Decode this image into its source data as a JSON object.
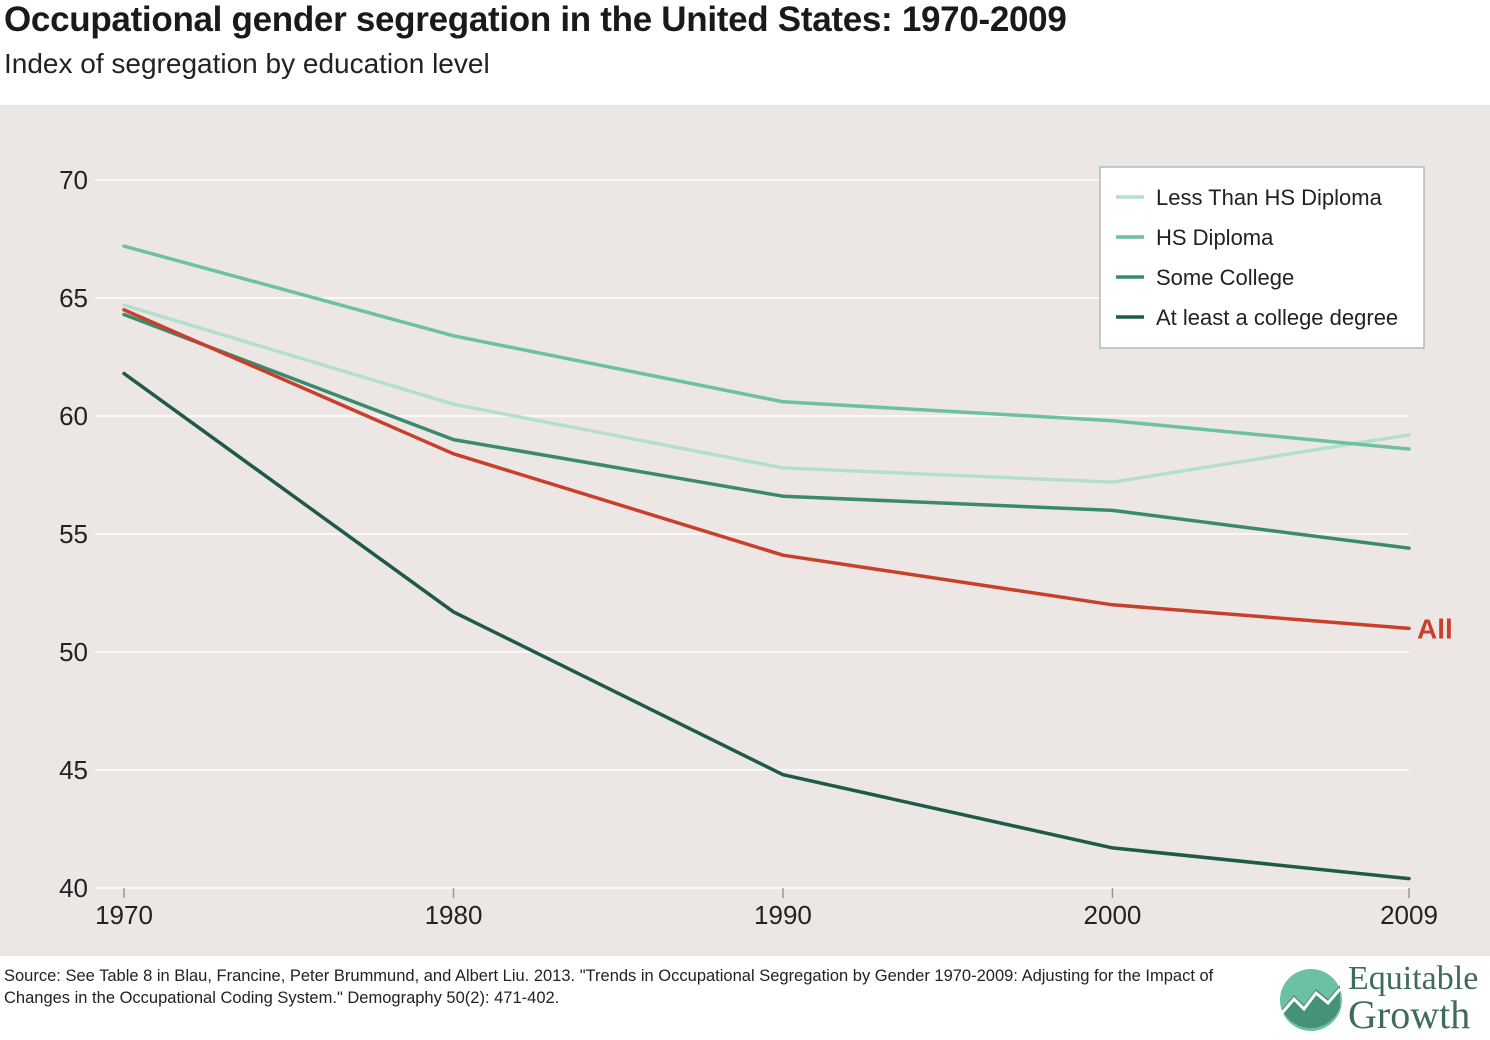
{
  "title": "Occupational gender segregation in the United States: 1970-2009",
  "subtitle": "Index of segregation by education level",
  "source": "Source: See Table 8 in Blau, Francine, Peter Brummund, and Albert Liu. 2013. \"Trends in Occupational Segregation by Gender 1970-2009: Adjusting for the Impact of Changes in the Occupational Coding System.\" Demography 50(2): 471-402.",
  "logo": {
    "line1": "Equitable",
    "line2": "Growth"
  },
  "colors": {
    "background": "#ece7e5",
    "grid": "#ffffff",
    "less_than_hs": "#b5dfcd",
    "hs_diploma": "#6cc0a4",
    "some_college": "#3a8a6e",
    "college_degree": "#1f5a48",
    "all": "#c9402a"
  },
  "chart_data": {
    "type": "line",
    "x": [
      1970,
      1980,
      1990,
      2000,
      2009
    ],
    "ylim": [
      40,
      70
    ],
    "yticks": [
      40,
      45,
      50,
      55,
      60,
      65,
      70
    ],
    "xticks": [
      "1970",
      "1980",
      "1990",
      "2000",
      "2009"
    ],
    "grid": true,
    "legend_position": "top-right",
    "series": [
      {
        "name": "Less Than HS Diploma",
        "color": "#b5dfcd",
        "values": [
          64.7,
          60.5,
          57.8,
          57.2,
          59.2
        ],
        "legend": true
      },
      {
        "name": "HS Diploma",
        "color": "#6cc0a4",
        "values": [
          67.2,
          63.4,
          60.6,
          59.8,
          58.6
        ],
        "legend": true
      },
      {
        "name": "Some College",
        "color": "#3a8a6e",
        "values": [
          64.3,
          59.0,
          56.6,
          56.0,
          54.4
        ],
        "legend": true
      },
      {
        "name": "At least a college degree",
        "color": "#1f5a48",
        "values": [
          61.8,
          51.7,
          44.8,
          41.7,
          40.4
        ],
        "legend": true
      },
      {
        "name": "All",
        "color": "#c9402a",
        "values": [
          64.5,
          58.4,
          54.1,
          52.0,
          51.0
        ],
        "legend": false,
        "end_label": "All"
      }
    ]
  }
}
